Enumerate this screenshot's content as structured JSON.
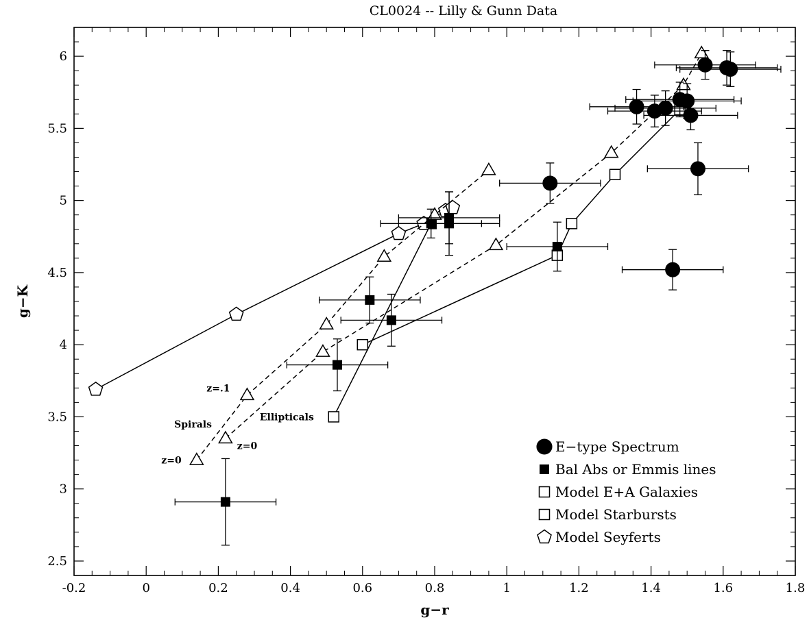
{
  "chart_data": {
    "type": "scatter",
    "title": "CL0024 -- Lilly & Gunn Data",
    "xlabel": "g−r",
    "ylabel": "g−K",
    "xlim": [
      -0.2,
      1.8
    ],
    "ylim": [
      2.4,
      6.2
    ],
    "x_ticks": [
      "-0.2",
      "0",
      "0.2",
      "0.4",
      "0.6",
      "0.8",
      "1",
      "1.2",
      "1.4",
      "1.6",
      "1.8"
    ],
    "y_ticks": [
      "2.5",
      "3",
      "3.5",
      "4",
      "4.5",
      "5",
      "5.5",
      "6"
    ],
    "grid": false,
    "legend_position": "bottom-right",
    "legend": [
      {
        "label": "E−type Spectrum",
        "marker": "filled-circle"
      },
      {
        "label": "Bal Abs or Emmis lines",
        "marker": "filled-square"
      },
      {
        "label": "Model E+A Galaxies",
        "marker": "open-square"
      },
      {
        "label": "Model Starbursts",
        "marker": "open-square"
      },
      {
        "label": "Model Seyferts",
        "marker": "open-pentagon"
      }
    ],
    "annotations": [
      {
        "text": "z=.1",
        "x": 0.2,
        "y": 3.7
      },
      {
        "text": "Spirals",
        "x": 0.13,
        "y": 3.45
      },
      {
        "text": "z=0",
        "x": 0.07,
        "y": 3.2
      },
      {
        "text": "z=0",
        "x": 0.28,
        "y": 3.3
      },
      {
        "text": "Ellipticals",
        "x": 0.39,
        "y": 3.5
      }
    ],
    "series": [
      {
        "name": "E−type Spectrum",
        "marker": "filled-circle",
        "points": [
          {
            "x": 1.12,
            "y": 5.12,
            "xerr": 0.14,
            "yerr": 0.14
          },
          {
            "x": 1.53,
            "y": 5.22,
            "xerr": 0.14,
            "yerr": 0.18
          },
          {
            "x": 1.46,
            "y": 4.52,
            "xerr": 0.14,
            "yerr": 0.14
          },
          {
            "x": 1.36,
            "y": 5.65,
            "xerr": 0.13,
            "yerr": 0.12
          },
          {
            "x": 1.41,
            "y": 5.62,
            "xerr": 0.13,
            "yerr": 0.11
          },
          {
            "x": 1.44,
            "y": 5.64,
            "xerr": 0.14,
            "yerr": 0.12
          },
          {
            "x": 1.48,
            "y": 5.7,
            "xerr": 0.15,
            "yerr": 0.12
          },
          {
            "x": 1.5,
            "y": 5.69,
            "xerr": 0.15,
            "yerr": 0.12
          },
          {
            "x": 1.51,
            "y": 5.59,
            "xerr": 0.13,
            "yerr": 0.1
          },
          {
            "x": 1.55,
            "y": 5.94,
            "xerr": 0.14,
            "yerr": 0.1
          },
          {
            "x": 1.61,
            "y": 5.92,
            "xerr": 0.14,
            "yerr": 0.12
          },
          {
            "x": 1.62,
            "y": 5.91,
            "xerr": 0.14,
            "yerr": 0.12
          }
        ]
      },
      {
        "name": "Bal Abs or Emmis lines",
        "marker": "filled-square",
        "points": [
          {
            "x": 0.22,
            "y": 2.91,
            "xerr": 0.14,
            "yerr": 0.3
          },
          {
            "x": 0.53,
            "y": 3.86,
            "xerr": 0.14,
            "yerr": 0.18
          },
          {
            "x": 0.62,
            "y": 4.31,
            "xerr": 0.14,
            "yerr": 0.16
          },
          {
            "x": 0.68,
            "y": 4.17,
            "xerr": 0.14,
            "yerr": 0.18
          },
          {
            "x": 0.79,
            "y": 4.84,
            "xerr": 0.14,
            "yerr": 0.1
          },
          {
            "x": 0.84,
            "y": 4.84,
            "xerr": 0.14,
            "yerr": 0.22
          },
          {
            "x": 0.84,
            "y": 4.88,
            "xerr": 0.14,
            "yerr": 0.18
          },
          {
            "x": 1.14,
            "y": 4.68,
            "xerr": 0.14,
            "yerr": 0.17
          }
        ]
      },
      {
        "name": "Model E+A Galaxies",
        "marker": "open-square",
        "line": "solid",
        "points": [
          {
            "x": 0.52,
            "y": 3.5
          },
          {
            "x": 0.79,
            "y": 4.84
          }
        ]
      },
      {
        "name": "Model Starbursts",
        "marker": "open-square",
        "line": "solid",
        "points": [
          {
            "x": 0.6,
            "y": 4.0
          },
          {
            "x": 1.14,
            "y": 4.62
          },
          {
            "x": 1.18,
            "y": 4.84
          },
          {
            "x": 1.3,
            "y": 5.18
          },
          {
            "x": 1.48,
            "y": 5.63
          }
        ]
      },
      {
        "name": "Model Seyferts",
        "marker": "open-pentagon",
        "line": "solid",
        "points": [
          {
            "x": -0.14,
            "y": 3.69
          },
          {
            "x": 0.25,
            "y": 4.21
          },
          {
            "x": 0.7,
            "y": 4.77
          },
          {
            "x": 0.77,
            "y": 4.84
          },
          {
            "x": 0.83,
            "y": 4.93
          },
          {
            "x": 0.85,
            "y": 4.95
          }
        ]
      },
      {
        "name": "Spirals track",
        "marker": "open-triangle",
        "line": "dashed",
        "points": [
          {
            "x": 0.14,
            "y": 3.2
          },
          {
            "x": 0.28,
            "y": 3.65
          },
          {
            "x": 0.5,
            "y": 4.14
          },
          {
            "x": 0.66,
            "y": 4.61
          },
          {
            "x": 0.8,
            "y": 4.9
          },
          {
            "x": 0.95,
            "y": 5.21
          }
        ]
      },
      {
        "name": "Ellipticals track",
        "marker": "open-triangle",
        "line": "dashed",
        "points": [
          {
            "x": 0.22,
            "y": 3.35
          },
          {
            "x": 0.49,
            "y": 3.95
          },
          {
            "x": 0.97,
            "y": 4.69
          },
          {
            "x": 1.29,
            "y": 5.33
          },
          {
            "x": 1.49,
            "y": 5.8
          },
          {
            "x": 1.54,
            "y": 6.02
          }
        ]
      }
    ]
  }
}
